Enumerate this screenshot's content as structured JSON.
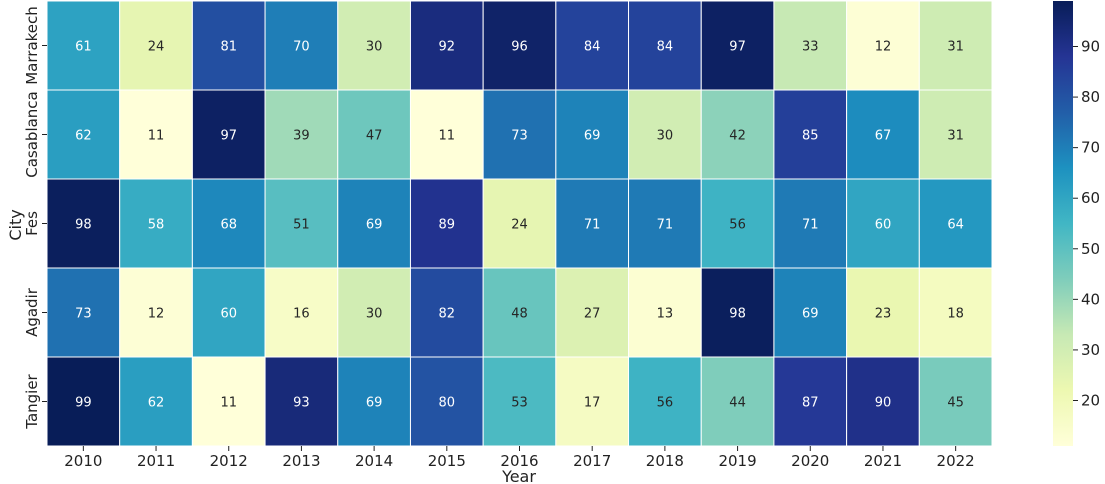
{
  "chart_data": {
    "type": "heatmap",
    "title": "",
    "xlabel": "Year",
    "ylabel": "City",
    "x": [
      "2010",
      "2011",
      "2012",
      "2013",
      "2014",
      "2015",
      "2016",
      "2017",
      "2018",
      "2019",
      "2020",
      "2021",
      "2022"
    ],
    "y": [
      "Marrakech",
      "Casablanca",
      "Fes",
      "Agadir",
      "Tangier"
    ],
    "values": [
      [
        61,
        24,
        81,
        70,
        30,
        92,
        96,
        84,
        84,
        97,
        33,
        12,
        31
      ],
      [
        62,
        11,
        97,
        39,
        47,
        11,
        73,
        69,
        30,
        42,
        85,
        67,
        31
      ],
      [
        98,
        58,
        68,
        51,
        69,
        89,
        24,
        71,
        71,
        56,
        71,
        60,
        64
      ],
      [
        73,
        12,
        60,
        16,
        30,
        82,
        48,
        27,
        13,
        98,
        69,
        23,
        18
      ],
      [
        99,
        62,
        11,
        93,
        69,
        80,
        53,
        17,
        56,
        44,
        87,
        90,
        45
      ]
    ],
    "colormap": "YlGnBu",
    "colorbar": {
      "range": [
        11,
        99
      ],
      "ticks": [
        20,
        30,
        40,
        50,
        60,
        70,
        80,
        90
      ]
    },
    "annotations": true,
    "grid": false,
    "legend": "colorbar right"
  }
}
